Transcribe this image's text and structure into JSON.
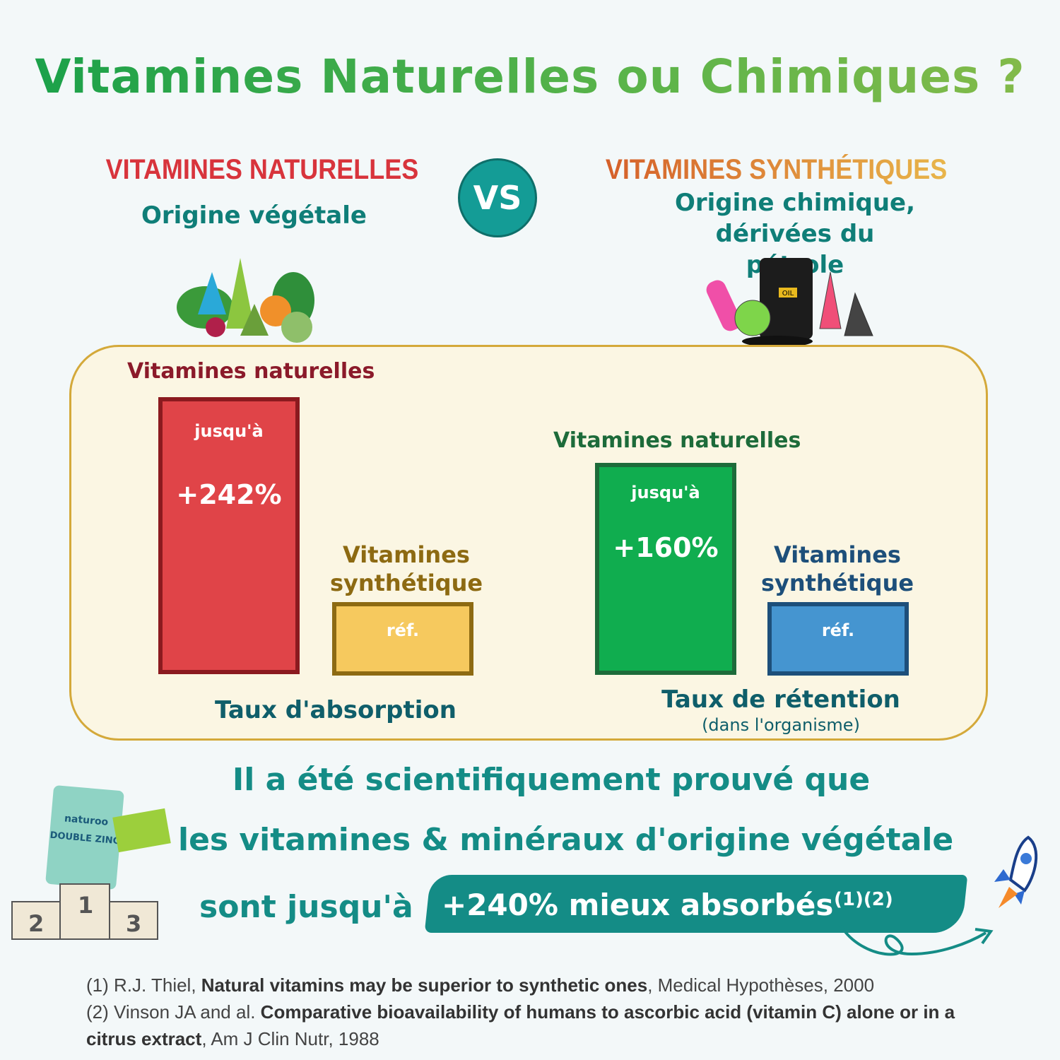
{
  "title": "Vitamines Naturelles ou Chimiques ?",
  "left": {
    "heading": "VITAMINES NATURELLES",
    "subtitle": "Origine végétale",
    "color": "#d8343c"
  },
  "vs_label": "VS",
  "right": {
    "heading": "VITAMINES SYNTHÉTIQUES",
    "subtitle_line1": "Origine chimique,",
    "subtitle_line2": "dérivées du pétrole",
    "color": "#e07b26"
  },
  "chart_data": [
    {
      "type": "bar",
      "caption": "Taux d'absorption",
      "bars": [
        {
          "label": "Vitamines naturelles",
          "prefix": "jusqu'à",
          "value_text": "+242%",
          "value": 242,
          "color": "#e04448"
        },
        {
          "label_line1": "Vitamines",
          "label_line2": "synthétique",
          "value_text": "réf.",
          "color": "#f6c95e"
        }
      ]
    },
    {
      "type": "bar",
      "caption": "Taux de rétention",
      "caption_sub": "(dans l'organisme)",
      "bars": [
        {
          "label": "Vitamines naturelles",
          "prefix": "jusqu'à",
          "value_text": "+160%",
          "value": 160,
          "color": "#10ad4f"
        },
        {
          "label_line1": "Vitamines",
          "label_line2": "synthétique",
          "value_text": "réf.",
          "color": "#4595d0"
        }
      ]
    }
  ],
  "message": {
    "line1": "Il a été scientifiquement prouvé que",
    "line2": "les vitamines & minéraux d'origine végétale",
    "line3_prefix": "sont jusqu'à",
    "highlight": "+240% mieux absorbés",
    "refs": "(1)(2)"
  },
  "product": {
    "brand": "naturoo",
    "name": "DOUBLE ZINC",
    "podium": [
      "2",
      "1",
      "3"
    ]
  },
  "barrel_label": "OIL",
  "footnotes": [
    {
      "num": "(1) R.J. Thiel, ",
      "title": "Natural vitamins may be superior to synthetic ones",
      "source": ", Medical Hypothèses, 2000"
    },
    {
      "num": "(2) Vinson JA and al. ",
      "title": "Comparative bioavailability of humans to ascorbic acid (vitamin C) alone or in a citrus extract",
      "source": ", Am J Clin Nutr, 1988"
    }
  ]
}
